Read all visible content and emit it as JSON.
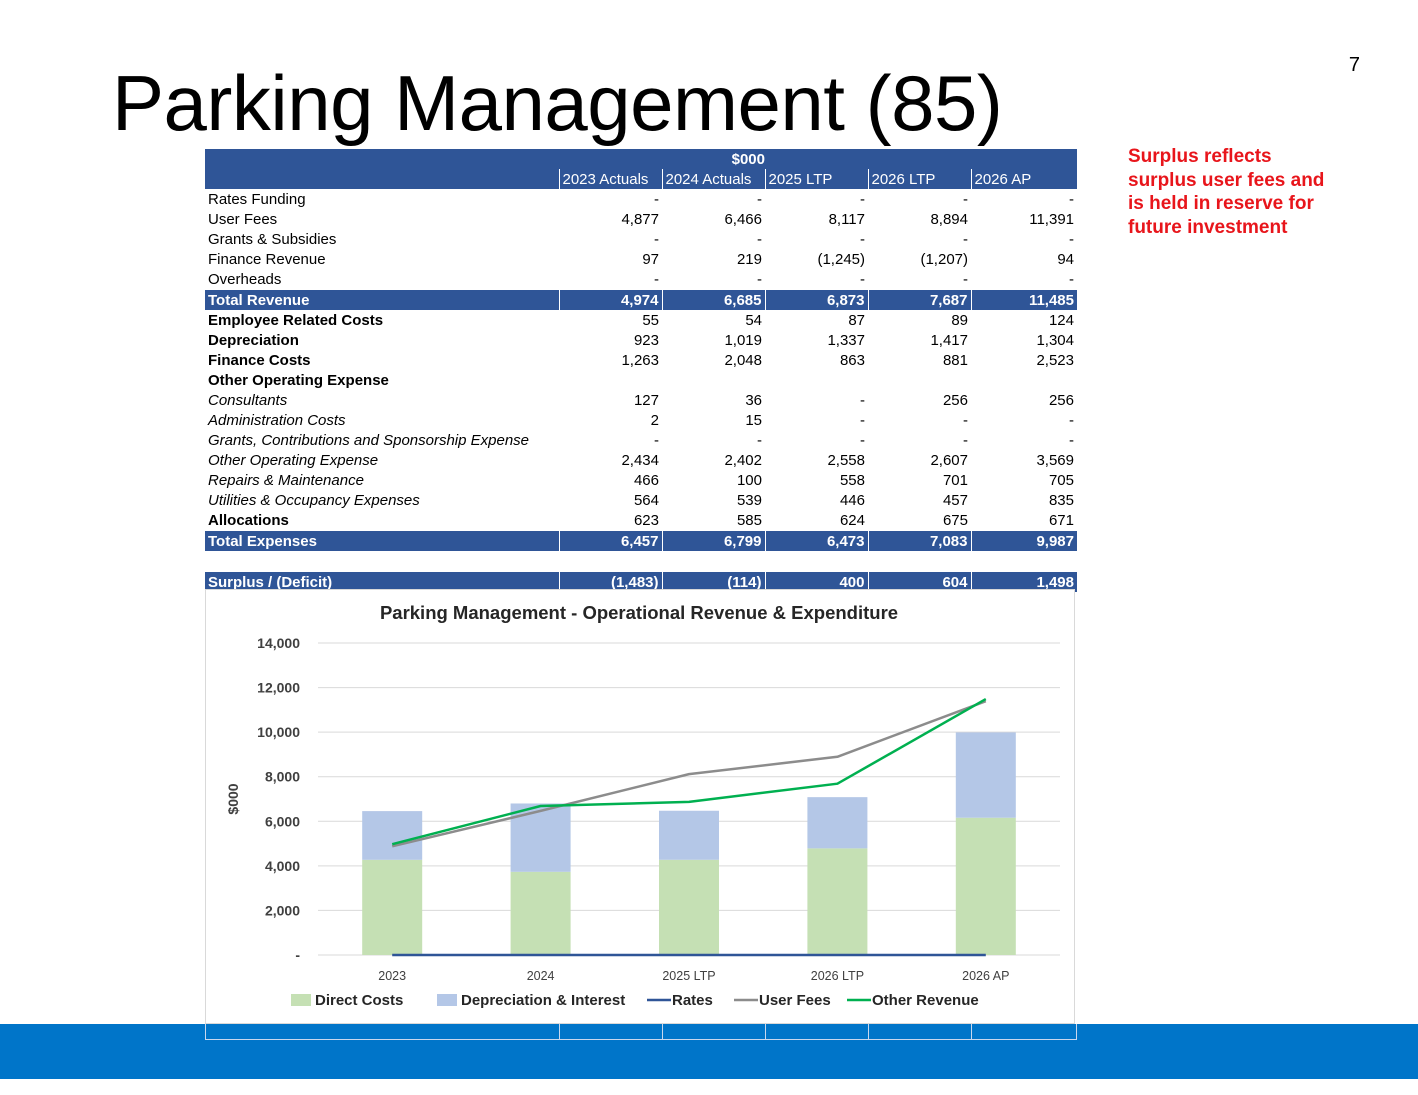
{
  "page_number": "7",
  "title": "Parking Management (85)",
  "side_note": "Surplus reflects surplus user fees and is held in reserve for future investment",
  "table": {
    "unit_header": "$000",
    "columns": [
      "2023 Actuals",
      "2024 Actuals",
      "2025 LTP",
      "2026 LTP",
      "2026 AP"
    ],
    "rows": [
      {
        "label": "Rates Funding",
        "style": "plain",
        "values": [
          "-",
          "-",
          "-",
          "-",
          "-"
        ]
      },
      {
        "label": "User Fees",
        "style": "plain",
        "values": [
          "4,877",
          "6,466",
          "8,117",
          "8,894",
          "11,391"
        ]
      },
      {
        "label": "Grants & Subsidies",
        "style": "plain",
        "values": [
          "-",
          "-",
          "-",
          "-",
          "-"
        ]
      },
      {
        "label": "Finance Revenue",
        "style": "plain",
        "values": [
          "97",
          "219",
          "(1,245)",
          "(1,207)",
          "94"
        ]
      },
      {
        "label": "Overheads",
        "style": "plain",
        "values": [
          "-",
          "-",
          "-",
          "-",
          "-"
        ]
      },
      {
        "label": "Total Revenue",
        "style": "total",
        "values": [
          "4,974",
          "6,685",
          "6,873",
          "7,687",
          "11,485"
        ]
      },
      {
        "label": "Employee Related Costs",
        "style": "bold",
        "values": [
          "55",
          "54",
          "87",
          "89",
          "124"
        ]
      },
      {
        "label": "Depreciation",
        "style": "bold",
        "values": [
          "923",
          "1,019",
          "1,337",
          "1,417",
          "1,304"
        ]
      },
      {
        "label": "Finance Costs",
        "style": "bold",
        "values": [
          "1,263",
          "2,048",
          "863",
          "881",
          "2,523"
        ]
      },
      {
        "label": "Other Operating  Expense",
        "style": "bold",
        "values": [
          "",
          "",
          "",
          "",
          ""
        ]
      },
      {
        "label": "Consultants",
        "style": "ital",
        "values": [
          "127",
          "36",
          "-",
          "256",
          "256"
        ]
      },
      {
        "label": "Administration Costs",
        "style": "ital",
        "values": [
          "2",
          "15",
          "-",
          "-",
          "-"
        ]
      },
      {
        "label": "Grants, Contributions and Sponsorship Expense",
        "style": "ital",
        "values": [
          "-",
          "-",
          "-",
          "-",
          "-"
        ]
      },
      {
        "label": "Other Operating Expense",
        "style": "ital",
        "values": [
          "2,434",
          "2,402",
          "2,558",
          "2,607",
          "3,569"
        ]
      },
      {
        "label": "Repairs & Maintenance",
        "style": "ital",
        "values": [
          "466",
          "100",
          "558",
          "701",
          "705"
        ]
      },
      {
        "label": "Utilities & Occupancy Expenses",
        "style": "ital",
        "values": [
          "564",
          "539",
          "446",
          "457",
          "835"
        ]
      },
      {
        "label": "Allocations",
        "style": "bold",
        "values": [
          "623",
          "585",
          "624",
          "675",
          "671"
        ]
      },
      {
        "label": "Total Expenses",
        "style": "total",
        "values": [
          "6,457",
          "6,799",
          "6,473",
          "7,083",
          "9,987"
        ]
      },
      {
        "label": "Surplus / (Deficit)",
        "style": "total",
        "values": [
          "(1,483)",
          "(114)",
          "400",
          "604",
          "1,498"
        ]
      }
    ]
  },
  "chart_data": {
    "type": "bar",
    "stacked": true,
    "title": "Parking Management - Operational Revenue & Expenditure",
    "xlabel": "",
    "ylabel": "$000",
    "ylim": [
      0,
      14000
    ],
    "yticks": [
      0,
      2000,
      4000,
      6000,
      8000,
      10000,
      12000,
      14000
    ],
    "ytick_labels": [
      "-",
      "2,000",
      "4,000",
      "6,000",
      "8,000",
      "10,000",
      "12,000",
      "14,000"
    ],
    "grid": true,
    "legend_position": "bottom",
    "categories": [
      "2023",
      "2024",
      "2025 LTP",
      "2026 LTP",
      "2026 AP"
    ],
    "series": [
      {
        "name": "Direct Costs",
        "kind": "bar",
        "color": "#c5e0b4",
        "values": [
          4271,
          3732,
          4273,
          4785,
          6160
        ]
      },
      {
        "name": "Depreciation & Interest",
        "kind": "bar",
        "color": "#b4c7e7",
        "values": [
          2186,
          3067,
          2200,
          2298,
          3827
        ]
      },
      {
        "name": "Rates",
        "kind": "line",
        "color": "#2f5597",
        "values": [
          0,
          0,
          0,
          0,
          0
        ]
      },
      {
        "name": "User Fees",
        "kind": "line",
        "color": "#8c8c8c",
        "values": [
          4877,
          6466,
          8117,
          8894,
          11391
        ]
      },
      {
        "name": "Other Revenue",
        "kind": "line",
        "color": "#00b050",
        "values": [
          4974,
          6685,
          6873,
          7687,
          11485
        ]
      }
    ]
  }
}
